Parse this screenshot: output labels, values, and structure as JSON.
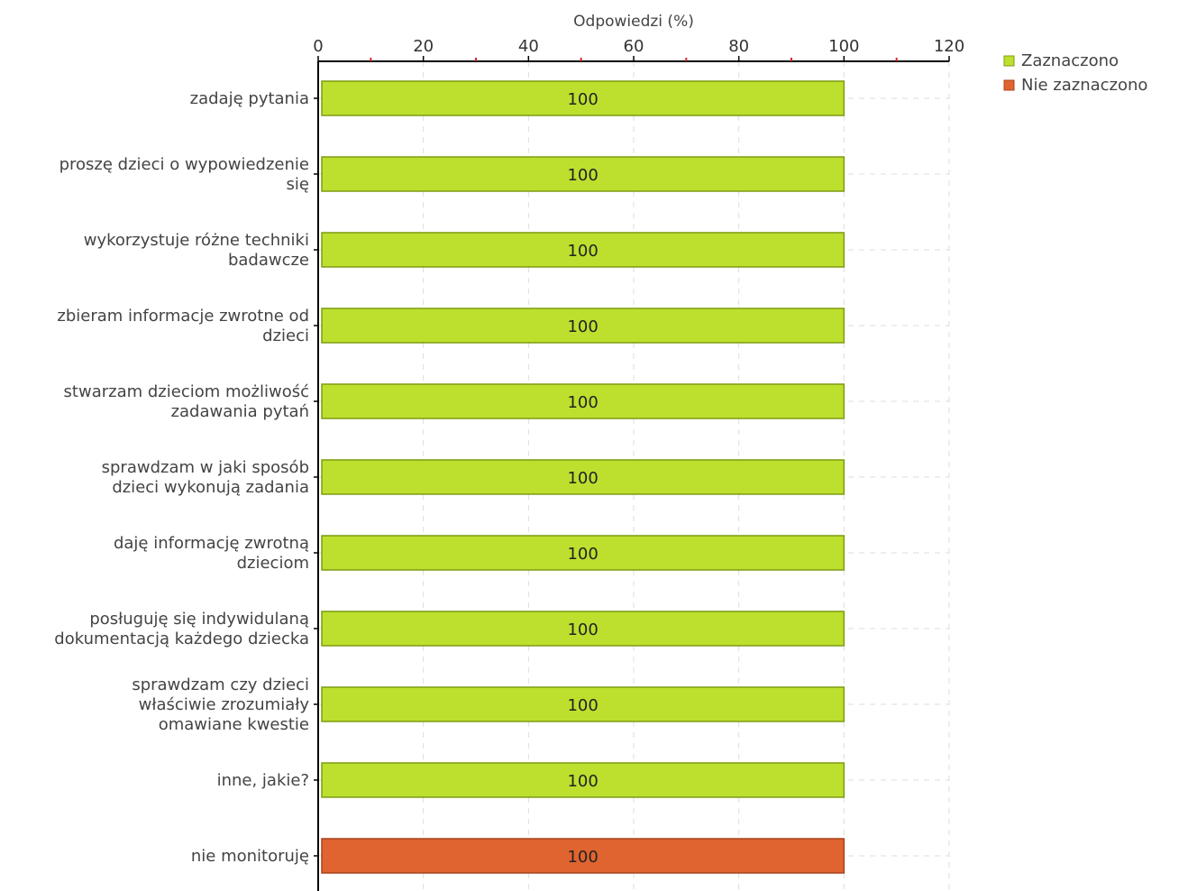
{
  "chart_data": {
    "type": "bar",
    "orientation": "horizontal",
    "xlabel": "Odpowiedzi (%)",
    "xlim": [
      0,
      120
    ],
    "xticks": [
      0,
      20,
      40,
      60,
      80,
      100,
      120
    ],
    "grid": true,
    "legend_position": "top-right",
    "categories": [
      [
        "zadaję pytania"
      ],
      [
        "proszę dzieci o wypowiedzenie",
        "się"
      ],
      [
        "wykorzystuje różne techniki",
        "badawcze"
      ],
      [
        "zbieram informacje zwrotne od",
        "dzieci"
      ],
      [
        "stwarzam dzieciom możliwość",
        "zadawania pytań"
      ],
      [
        "sprawdzam w jaki sposób",
        "dzieci wykonują zadania"
      ],
      [
        "daję informację zwrotną",
        "dzieciom"
      ],
      [
        "posługuję się indywidulaną",
        "dokumentacją każdego dziecka"
      ],
      [
        "sprawdzam czy dzieci",
        "właściwie zrozumiały",
        "omawiane kwestie"
      ],
      [
        "inne, jakie?"
      ],
      [
        "nie monitoruję"
      ]
    ],
    "values": [
      100,
      100,
      100,
      100,
      100,
      100,
      100,
      100,
      100,
      100,
      100
    ],
    "bar_series": [
      0,
      0,
      0,
      0,
      0,
      0,
      0,
      0,
      0,
      0,
      1
    ],
    "series": [
      {
        "name": "Zaznaczono",
        "color": "#bde02e",
        "border": "#7d9c12"
      },
      {
        "name": "Nie zaznaczono",
        "color": "#e06430",
        "border": "#a8431b"
      }
    ]
  }
}
